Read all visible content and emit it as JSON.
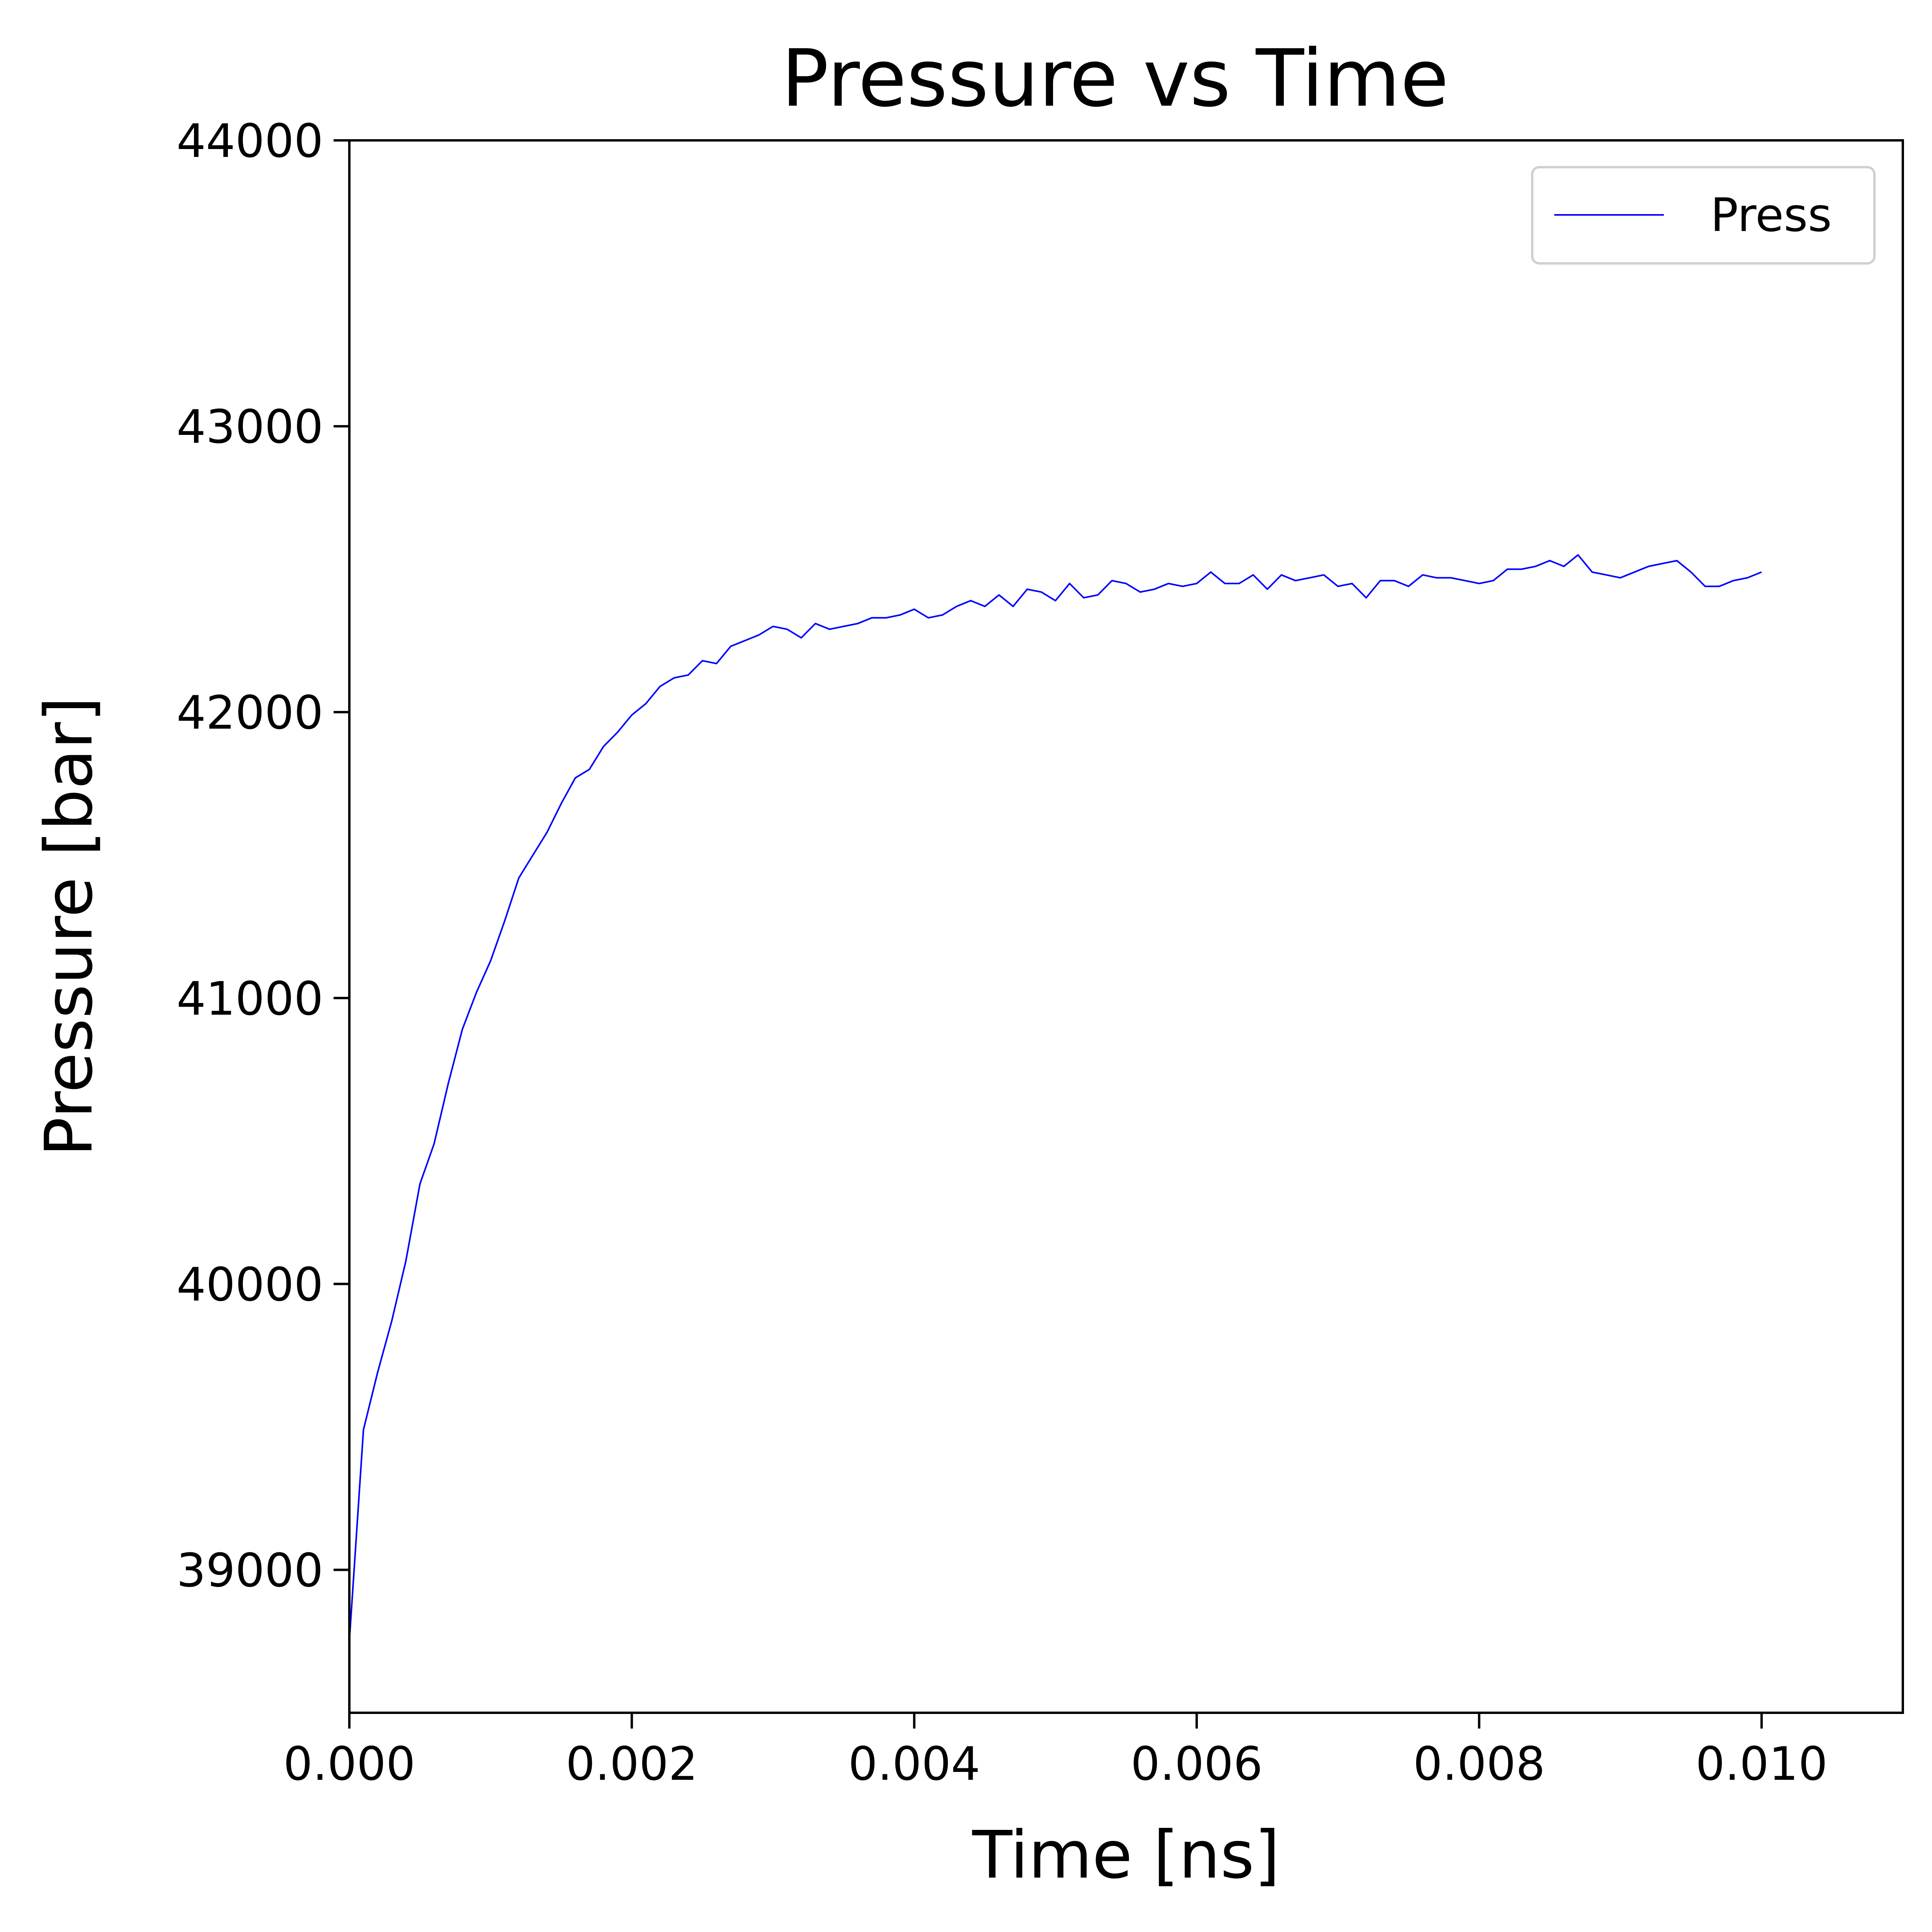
{
  "chart_data": {
    "type": "line",
    "title": "Pressure vs Time",
    "xlabel": "Time [ns]",
    "ylabel": "Pressure [bar]",
    "xlim": [
      0,
      0.011
    ],
    "ylim": [
      38500,
      44000
    ],
    "xticks": [
      0.0,
      0.002,
      0.004,
      0.006,
      0.008,
      0.01
    ],
    "xtick_labels": [
      "0.000",
      "0.002",
      "0.004",
      "0.006",
      "0.008",
      "0.010"
    ],
    "yticks": [
      39000,
      40000,
      41000,
      42000,
      43000,
      44000
    ],
    "ytick_labels": [
      "39000",
      "40000",
      "41000",
      "42000",
      "43000",
      "44000"
    ],
    "grid": false,
    "legend_position": "top-right",
    "series": [
      {
        "name": "Press",
        "color": "#0000ff",
        "x": [
          0.0,
          0.0001,
          0.0002,
          0.0003,
          0.0004,
          0.0005,
          0.0006,
          0.0007,
          0.0008,
          0.0009,
          0.001,
          0.0011,
          0.0012,
          0.0013,
          0.0014,
          0.0015,
          0.0016,
          0.0017,
          0.0018,
          0.0019,
          0.002,
          0.0021,
          0.0022,
          0.0023,
          0.0024,
          0.0025,
          0.0026,
          0.0027,
          0.0028,
          0.0029,
          0.003,
          0.0031,
          0.0032,
          0.0033,
          0.0034,
          0.0035,
          0.0036,
          0.0037,
          0.0038,
          0.0039,
          0.004,
          0.0041,
          0.0042,
          0.0043,
          0.0044,
          0.0045,
          0.0046,
          0.0047,
          0.0048,
          0.0049,
          0.005,
          0.0051,
          0.0052,
          0.0053,
          0.0054,
          0.0055,
          0.0056,
          0.0057,
          0.0058,
          0.0059,
          0.006,
          0.0061,
          0.0062,
          0.0063,
          0.0064,
          0.0065,
          0.0066,
          0.0067,
          0.0068,
          0.0069,
          0.007,
          0.0071,
          0.0072,
          0.0073,
          0.0074,
          0.0075,
          0.0076,
          0.0077,
          0.0078,
          0.0079,
          0.008,
          0.0081,
          0.0082,
          0.0083,
          0.0084,
          0.0085,
          0.0086,
          0.0087,
          0.0088,
          0.0089,
          0.009,
          0.0091,
          0.0092,
          0.0093,
          0.0094,
          0.0095,
          0.0096,
          0.0097,
          0.0098,
          0.0099,
          0.01
        ],
        "y": [
          38750,
          39490,
          39690,
          39870,
          40080,
          40350,
          40490,
          40700,
          40890,
          41020,
          41130,
          41270,
          41420,
          41500,
          41580,
          41680,
          41770,
          41800,
          41880,
          41930,
          41990,
          42030,
          42090,
          42120,
          42130,
          42180,
          42170,
          42230,
          42250,
          42270,
          42300,
          42290,
          42260,
          42310,
          42290,
          42300,
          42310,
          42330,
          42330,
          42340,
          42360,
          42330,
          42340,
          42370,
          42390,
          42370,
          42410,
          42370,
          42430,
          42420,
          42390,
          42450,
          42400,
          42410,
          42460,
          42450,
          42420,
          42430,
          42450,
          42440,
          42450,
          42490,
          42450,
          42450,
          42480,
          42430,
          42480,
          42460,
          42470,
          42480,
          42440,
          42450,
          42400,
          42460,
          42460,
          42440,
          42480,
          42470,
          42470,
          42460,
          42450,
          42460,
          42500,
          42500,
          42510,
          42530,
          42510,
          42550,
          42490,
          42480,
          42470,
          42490,
          42510,
          42520,
          42530,
          42490,
          42440,
          42440,
          42460,
          42470,
          42490
        ]
      }
    ]
  }
}
